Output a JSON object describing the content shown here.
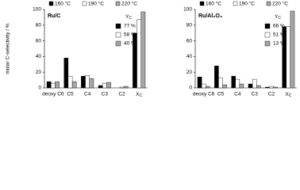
{
  "chart_data": [
    {
      "type": "bar",
      "title": "Ru/C",
      "y_label": "molar C-selectivity / %",
      "categories": [
        "deoxy C6",
        "C5",
        "C4",
        "C3",
        "C2",
        {
          "main": "X",
          "sub": "C"
        }
      ],
      "series": [
        {
          "name": "160 °C",
          "color": "#000000",
          "values": [
            8,
            38,
            15,
            3,
            0,
            70
          ]
        },
        {
          "name": "190 °C",
          "color": "#ffffff",
          "values": [
            6,
            15,
            16,
            6,
            1,
            87
          ]
        },
        {
          "name": "220 °C",
          "color": "#a6a6a6",
          "values": [
            8,
            8,
            12,
            7,
            2,
            97
          ]
        }
      ],
      "legend_title": {
        "main": "Y",
        "sub": "C"
      },
      "legend_values": [
        "77 %",
        "58 %",
        "40 %"
      ],
      "ylim": [
        0,
        100
      ],
      "yticks": [
        0,
        20,
        40,
        60,
        80,
        100
      ]
    },
    {
      "type": "bar",
      "title": "Ru/Al₂O₃",
      "categories": [
        "deoxy C6",
        "C5",
        "C4",
        "C3",
        "C2",
        {
          "main": "X",
          "sub": "C"
        }
      ],
      "series": [
        {
          "name": "160 °C",
          "color": "#000000",
          "values": [
            14,
            28,
            15,
            5,
            1,
            78
          ]
        },
        {
          "name": "190 °C",
          "color": "#ffffff",
          "values": [
            5,
            13,
            11,
            11,
            2,
            78
          ]
        },
        {
          "name": "220 °C",
          "color": "#a6a6a6",
          "values": [
            2,
            4,
            5,
            3,
            1,
            98
          ]
        }
      ],
      "legend_title": {
        "main": "Y",
        "sub": "C"
      },
      "legend_values": [
        "66 %",
        "51 %",
        "13 %"
      ],
      "ylim": [
        0,
        100
      ],
      "yticks": [
        0,
        20,
        40,
        60,
        80,
        100
      ]
    }
  ]
}
